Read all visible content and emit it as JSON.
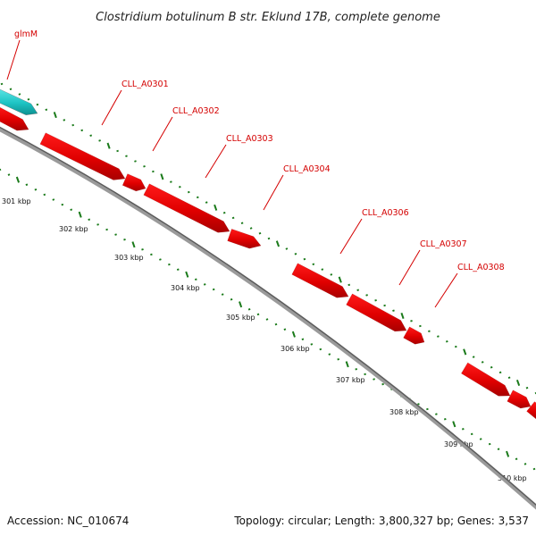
{
  "title": "Clostridium botulinum B str. Eklund 17B, complete genome",
  "footer": {
    "accession": "Accession: NC_010674",
    "summary": "Topology: circular; Length: 3,800,327 bp; Genes: 3,537"
  },
  "colors": {
    "cds": "#ee0000",
    "cds_dark": "#a80000",
    "rna": "#20c8c8",
    "backbone": "#7a7a7a",
    "tick": "#1a7a1a",
    "label": "#d40000"
  },
  "gene_labels": [
    {
      "id": "glmM",
      "text": "glmM"
    },
    {
      "id": "cll-a0301",
      "text": "CLL_A0301"
    },
    {
      "id": "cll-a0302",
      "text": "CLL_A0302"
    },
    {
      "id": "cll-a0303",
      "text": "CLL_A0303"
    },
    {
      "id": "cll-a0304",
      "text": "CLL_A0304"
    },
    {
      "id": "cll-a0306",
      "text": "CLL_A0306"
    },
    {
      "id": "cll-a0307",
      "text": "CLL_A0307"
    },
    {
      "id": "cll-a0308",
      "text": "CLL_A0308"
    }
  ],
  "kbp_labels": [
    "301 kbp",
    "302 kbp",
    "303 kbp",
    "304 kbp",
    "305 kbp",
    "306 kbp",
    "307 kbp",
    "308 kbp",
    "309 kbp",
    "310 kbp"
  ]
}
